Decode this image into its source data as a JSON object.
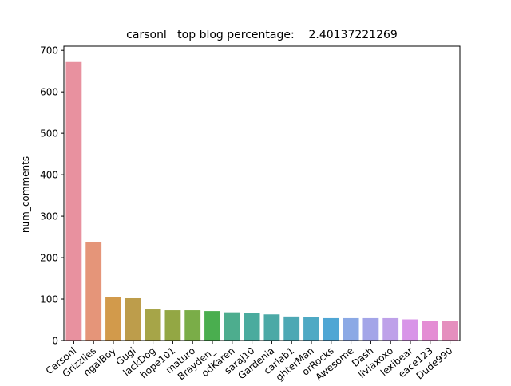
{
  "chart_data": {
    "type": "bar",
    "title": "carsonl   top blog percentage:    2.40137221269",
    "xlabel": "",
    "ylabel": "num_comments",
    "ylim": [
      0,
      710
    ],
    "yticks": [
      0,
      100,
      200,
      300,
      400,
      500,
      600,
      700
    ],
    "grid": false,
    "legend": "none",
    "categories": [
      "Carsonl",
      "Grizzlies",
      "ngalBoy",
      "Gugi",
      "lackDog",
      "hope101",
      "maturo",
      "Brayden_",
      "odKaren",
      "saraj10",
      "Gardenia",
      "carlab1",
      "ghterMan",
      "orRocks",
      "Awesome",
      "Dash",
      "liviaxoxo",
      "lexibear",
      "eace123",
      "Dude990"
    ],
    "values": [
      672,
      237,
      104,
      102,
      75,
      73,
      73,
      71,
      68,
      66,
      63,
      58,
      56,
      54,
      54,
      54,
      54,
      51,
      47,
      47
    ],
    "colors": [
      "#e8919f",
      "#e59579",
      "#d29a4b",
      "#bd9d4b",
      "#a6a548",
      "#93a744",
      "#7aad48",
      "#4aae4f",
      "#4dad8e",
      "#4aab9e",
      "#4ba9a6",
      "#4da8b4",
      "#4ea9c4",
      "#4fa6d4",
      "#8ba9e5",
      "#a3a5e8",
      "#bea1e9",
      "#d895e8",
      "#e48dd4",
      "#e58fbe"
    ]
  }
}
